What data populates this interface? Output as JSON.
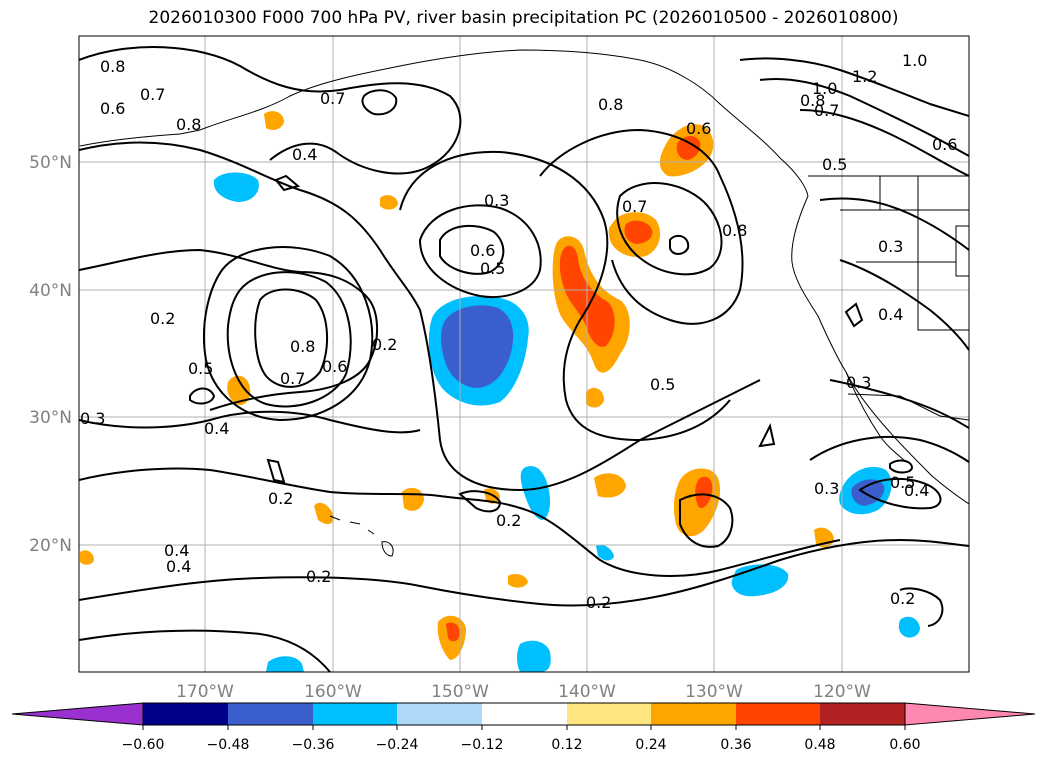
{
  "title": "2026010300 F000 700 hPa PV, river basin precipitation PC (2026010500 - 2026010800)",
  "map": {
    "lon_ticks": [
      "170°W",
      "160°W",
      "150°W",
      "140°W",
      "130°W",
      "120°W"
    ],
    "lat_ticks": [
      "50°N",
      "40°N",
      "30°N",
      "20°N"
    ],
    "contour_labels": [
      "0.8",
      "0.7",
      "0.6",
      "0.7",
      "0.8",
      "0.4",
      "0.3",
      "0.6",
      "0.5",
      "0.2",
      "0.8",
      "0.7",
      "0.6",
      "0.5",
      "0.4",
      "0.3",
      "0.2",
      "0.2",
      "0.2",
      "0.4",
      "0.2",
      "0.2",
      "0.5",
      "0.7",
      "0.8",
      "0.8",
      "0.6",
      "1.0",
      "1.2",
      "1.0",
      "0.8",
      "0.7",
      "0.5",
      "0.6",
      "0.3",
      "0.4",
      "0.3",
      "0.3",
      "0.5",
      "0.4",
      "0.2",
      "0.4"
    ],
    "colors": {
      "contour": "#000000",
      "grid": "#b0b0b0",
      "coast": "#000000",
      "tick_label": "#808080"
    }
  },
  "colorbar": {
    "tick_labels": [
      "−0.60",
      "−0.48",
      "−0.36",
      "−0.24",
      "−0.12",
      "0.12",
      "0.24",
      "0.36",
      "0.48",
      "0.60"
    ],
    "bins": [
      "#9b30d0",
      "#00008b",
      "#3a5fcd",
      "#00bfff",
      "#add8f7",
      "#ffffff",
      "#ffe680",
      "#ffa500",
      "#ff4500",
      "#b22222",
      "#ff88b0"
    ]
  },
  "regions": [
    {
      "name": "negative-pc-center",
      "color": "#3a5fcd"
    },
    {
      "name": "positive-pc-band",
      "color": "#ff4500"
    }
  ]
}
